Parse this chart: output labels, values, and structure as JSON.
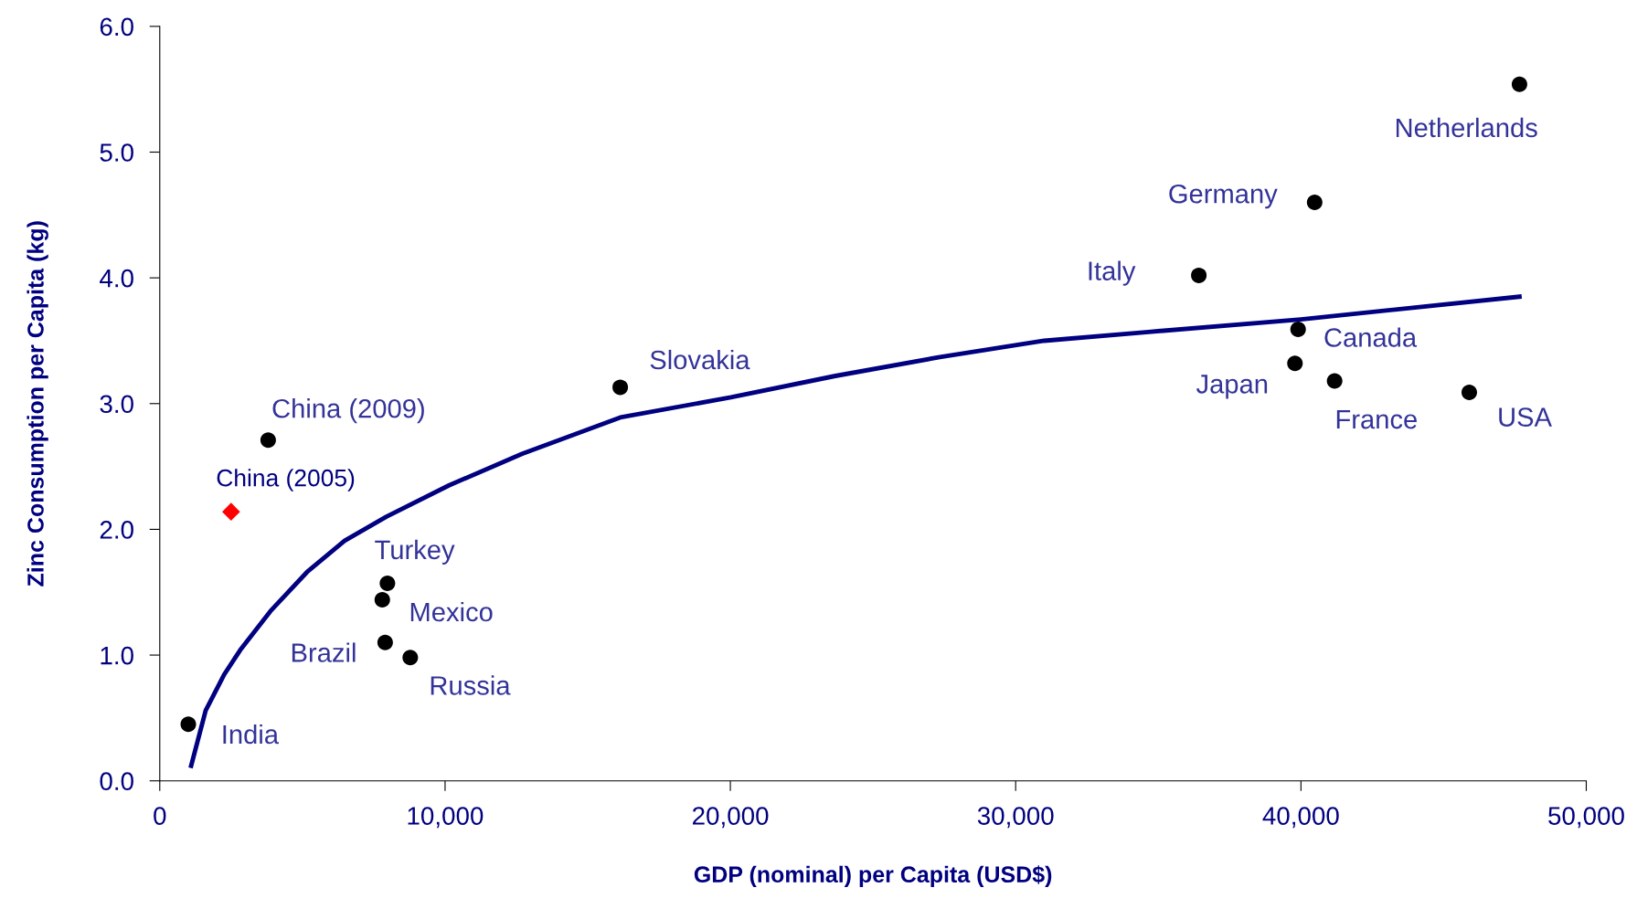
{
  "chart_data": {
    "type": "scatter",
    "xlabel": "GDP (nominal) per Capita (USD$)",
    "ylabel": "Zinc Consumption per Capita (kg)",
    "xlim": [
      0,
      50000
    ],
    "xticks": [
      {
        "value": 0,
        "label": "0"
      },
      {
        "value": 10000,
        "label": "10,000"
      },
      {
        "value": 20000,
        "label": "20,000"
      },
      {
        "value": 30000,
        "label": "30,000"
      },
      {
        "value": 40000,
        "label": "40,000"
      },
      {
        "value": 50000,
        "label": "50,000"
      }
    ],
    "ylim": [
      0,
      6
    ],
    "yticks": [
      {
        "value": 0,
        "label": "0.0"
      },
      {
        "value": 1,
        "label": "1.0"
      },
      {
        "value": 2,
        "label": "2.0"
      },
      {
        "value": 3,
        "label": "3.0"
      },
      {
        "value": 4,
        "label": "4.0"
      },
      {
        "value": 5,
        "label": "5.0"
      },
      {
        "value": 6,
        "label": "6.0"
      }
    ],
    "grid": false,
    "legend": false,
    "series": [
      {
        "type": "line",
        "color": "#000080",
        "marker": "none",
        "line_style": "solid",
        "x": [
          1100,
          1610,
          2270,
          2820,
          3880,
          5160,
          6480,
          7940,
          10140,
          12700,
          16140,
          20020,
          23680,
          27340,
          31000,
          34660,
          40000,
          47660
        ],
        "values": [
          0.12,
          0.56,
          0.85,
          1.04,
          1.35,
          1.66,
          1.91,
          2.1,
          2.35,
          2.6,
          2.89,
          3.05,
          3.22,
          3.37,
          3.5,
          3.57,
          3.67,
          3.85
        ]
      },
      {
        "color": "#000000",
        "marker": "circle",
        "x": [
          1000,
          3800,
          7980,
          7800,
          7900,
          8780,
          16140,
          36420,
          40480,
          47660,
          39900,
          39790,
          41180,
          45900
        ],
        "values": [
          0.45,
          2.71,
          1.57,
          1.44,
          1.1,
          0.98,
          3.13,
          4.02,
          4.6,
          5.54,
          3.59,
          3.32,
          3.18,
          3.09
        ]
      },
      {
        "name": "China (2005)",
        "color": "#ff0000",
        "marker": "diamond",
        "x": [
          2500
        ],
        "values": [
          2.14
        ]
      }
    ],
    "annotations": [
      {
        "text": "India",
        "x": 1000,
        "y": 0.45
      },
      {
        "text": "China (2009)",
        "x": 3800,
        "y": 2.71
      },
      {
        "text": "Turkey",
        "x": 7980,
        "y": 1.57
      },
      {
        "text": "Mexico",
        "x": 7800,
        "y": 1.44
      },
      {
        "text": "Brazil",
        "x": 7900,
        "y": 1.1
      },
      {
        "text": "Russia",
        "x": 8780,
        "y": 0.98
      },
      {
        "text": "Slovakia",
        "x": 16140,
        "y": 3.13
      },
      {
        "text": "Italy",
        "x": 36420,
        "y": 4.02
      },
      {
        "text": "Germany",
        "x": 40480,
        "y": 4.6
      },
      {
        "text": "Netherlands",
        "x": 47660,
        "y": 5.54
      },
      {
        "text": "Canada",
        "x": 39900,
        "y": 3.59
      },
      {
        "text": "Japan",
        "x": 39790,
        "y": 3.32
      },
      {
        "text": "France",
        "x": 41180,
        "y": 3.18
      },
      {
        "text": "USA",
        "x": 45900,
        "y": 3.09
      }
    ]
  }
}
